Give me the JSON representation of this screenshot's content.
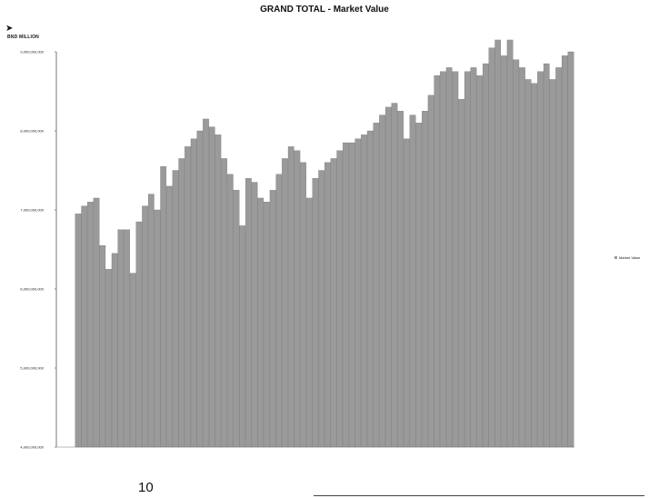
{
  "chart_data": {
    "type": "bar",
    "title": "GRAND TOTAL - Market Value",
    "subtitle": "",
    "ylabel": "BND MILLION",
    "xlabel": "",
    "ylim": [
      4000000000,
      9000000000
    ],
    "yticks": [
      4000000000,
      5000000000,
      6000000000,
      7000000000,
      8000000000,
      9000000000
    ],
    "ytick_labels": [
      "4,000,000,000",
      "5,000,000,000",
      "6,000,000,000",
      "7,000,000,000",
      "8,000,000,000",
      "9,000,000,000"
    ],
    "grid": false,
    "legend": {
      "position": "right",
      "entries": [
        "Market Value"
      ]
    },
    "bar_color": "#9a9a9a",
    "series": [
      {
        "name": "Market Value",
        "values": [
          6950000000,
          7050000000,
          7100000000,
          7150000000,
          6550000000,
          6250000000,
          6450000000,
          6750000000,
          6750000000,
          6200000000,
          6850000000,
          7050000000,
          7200000000,
          7000000000,
          7550000000,
          7300000000,
          7500000000,
          7650000000,
          7800000000,
          7900000000,
          8000000000,
          8150000000,
          8050000000,
          7950000000,
          7650000000,
          7450000000,
          7250000000,
          6800000000,
          7400000000,
          7350000000,
          7150000000,
          7100000000,
          7250000000,
          7450000000,
          7650000000,
          7800000000,
          7750000000,
          7600000000,
          7150000000,
          7400000000,
          7500000000,
          7600000000,
          7650000000,
          7750000000,
          7850000000,
          7850000000,
          7900000000,
          7950000000,
          8000000000,
          8100000000,
          8200000000,
          8300000000,
          8350000000,
          8250000000,
          7900000000,
          8200000000,
          8100000000,
          8250000000,
          8450000000,
          8700000000,
          8750000000,
          8800000000,
          8750000000,
          8400000000,
          8750000000,
          8800000000,
          8700000000,
          8850000000,
          9050000000,
          9150000000,
          8950000000,
          9150000000,
          8900000000,
          8800000000,
          8650000000,
          8600000000,
          8750000000,
          8850000000,
          8650000000,
          8800000000,
          8950000000,
          9000000000
        ]
      }
    ]
  },
  "page_number": "10"
}
